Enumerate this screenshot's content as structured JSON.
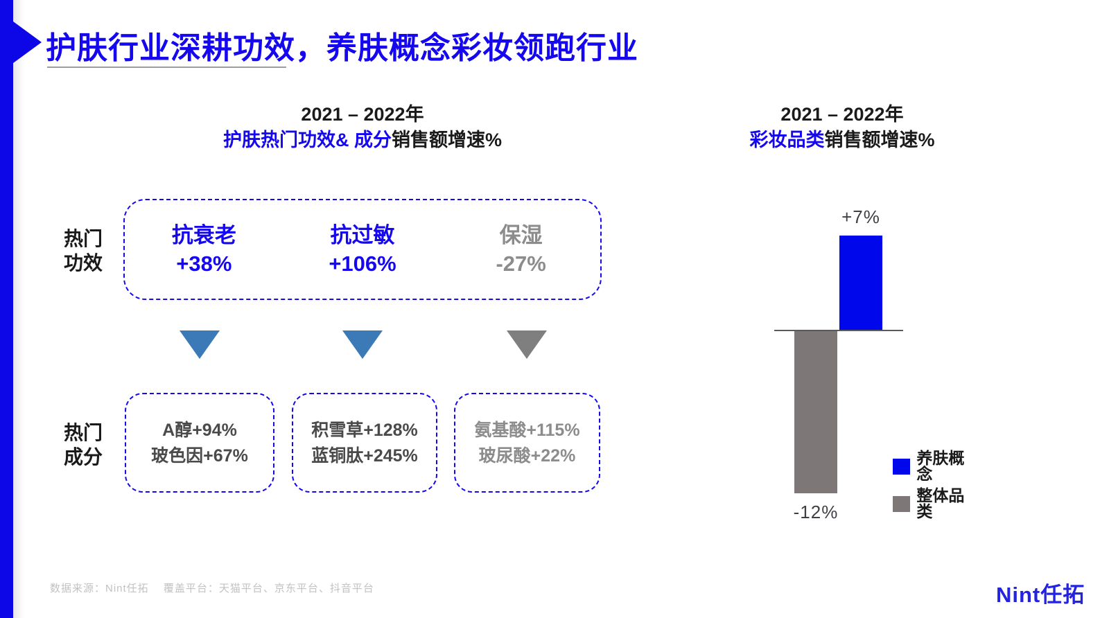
{
  "slide": {
    "title": "护肤行业深耕功效，养肤概念彩妆领跑行业"
  },
  "left_panel": {
    "header_line1": "2021 – 2022年",
    "header_line2_highlight": "护肤热门功效& 成分",
    "header_line2_rest": "销售额增速%",
    "labels": {
      "functions": [
        "热门",
        "功效"
      ],
      "ingredients": [
        "热门",
        "成分"
      ]
    },
    "functions": [
      {
        "name": "抗衰老",
        "value": "+38%",
        "color": "#1508EE",
        "arrow_color": "#3C79B7"
      },
      {
        "name": "抗过敏",
        "value": "+106%",
        "color": "#1508EE",
        "arrow_color": "#3C79B7"
      },
      {
        "name": "保湿",
        "value": "-27%",
        "color": "#8C8C8C",
        "arrow_color": "#7F7F7F"
      }
    ],
    "ingredient_boxes": [
      {
        "line1": "A醇+94%",
        "line2": "玻色因+67%",
        "color": "#4A4A4A"
      },
      {
        "line1": "积雪草+128%",
        "line2": "蓝铜肽+245%",
        "color": "#4A4A4A"
      },
      {
        "line1": "氨基酸+115%",
        "line2": "玻尿酸+22%",
        "color": "#8C8C8C"
      }
    ]
  },
  "right_panel": {
    "header_line1": "2021 – 2022年",
    "header_line2_highlight": "彩妆品类",
    "header_line2_rest": "销售额增速%"
  },
  "chart_data": [
    {
      "type": "table",
      "title": "2021 – 2022年 护肤热门功效& 成分销售额增速%",
      "groups": [
        {
          "function": "抗衰老",
          "growth_pct": 38,
          "ingredients": [
            {
              "name": "A醇",
              "growth_pct": 94
            },
            {
              "name": "玻色因",
              "growth_pct": 67
            }
          ]
        },
        {
          "function": "抗过敏",
          "growth_pct": 106,
          "ingredients": [
            {
              "name": "积雪草",
              "growth_pct": 128
            },
            {
              "name": "蓝铜肽",
              "growth_pct": 245
            }
          ]
        },
        {
          "function": "保湿",
          "growth_pct": -27,
          "ingredients": [
            {
              "name": "氨基酸",
              "growth_pct": 115
            },
            {
              "name": "玻尿酸",
              "growth_pct": 22
            }
          ]
        }
      ]
    },
    {
      "type": "bar",
      "title": "2021 – 2022年 彩妆品类销售额增速%",
      "categories": [
        "养肤概念",
        "整体品类"
      ],
      "series": [
        {
          "name": "养肤概念",
          "value": 7,
          "label": "+7%",
          "color": "#0008EB"
        },
        {
          "name": "整体品类",
          "value": -12,
          "label": "-12%",
          "color": "#7D7777"
        }
      ],
      "unit": "%",
      "baseline": 0,
      "grid": false,
      "axis_color": "#5A5A5A",
      "legend_position": "bottom-right"
    }
  ],
  "footer": {
    "source_text": "数据来源：Nint任拓　 覆盖平台：天猫平台、京东平台、抖音平台",
    "logo_text": "Nint任拓"
  }
}
